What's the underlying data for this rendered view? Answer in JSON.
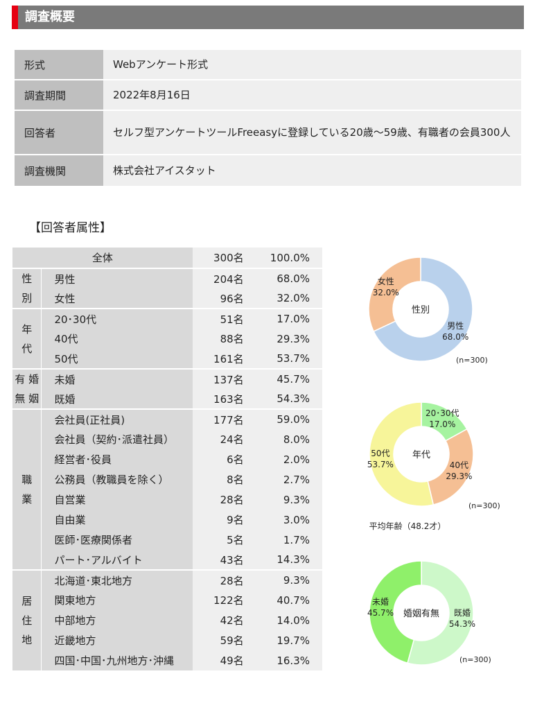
{
  "header": {
    "title": "調査概要"
  },
  "overview": [
    {
      "key": "形式",
      "value": "Webアンケート形式"
    },
    {
      "key": "調査期間",
      "value": "2022年8月16日"
    },
    {
      "key": "回答者",
      "value": "セルフ型アンケートツールFreeasyに登録している20歳～59歳、有職者の会員300人"
    },
    {
      "key": "調査機関",
      "value": "株式会社アイスタット"
    }
  ],
  "attributes": {
    "title": "【回答者属性】",
    "total": {
      "label": "全体",
      "count": "300名",
      "pct": "100.0%"
    },
    "groups": [
      {
        "name": "性\n別",
        "rows": [
          {
            "label": "男性",
            "count": "204名",
            "pct": "68.0%"
          },
          {
            "label": "女性",
            "count": "96名",
            "pct": "32.0%"
          }
        ]
      },
      {
        "name": "年\n代",
        "rows": [
          {
            "label": "20･30代",
            "count": "51名",
            "pct": "17.0%"
          },
          {
            "label": "40代",
            "count": "88名",
            "pct": "29.3%"
          },
          {
            "label": "50代",
            "count": "161名",
            "pct": "53.7%"
          }
        ]
      },
      {
        "name": "有 婚\n無 姻",
        "rows": [
          {
            "label": "未婚",
            "count": "137名",
            "pct": "45.7%"
          },
          {
            "label": "既婚",
            "count": "163名",
            "pct": "54.3%"
          }
        ]
      },
      {
        "name": "職\n業",
        "rows": [
          {
            "label": "会社員(正社員)",
            "count": "177名",
            "pct": "59.0%"
          },
          {
            "label": "会社員（契約･派遣社員）",
            "count": "24名",
            "pct": "8.0%"
          },
          {
            "label": "経営者･役員",
            "count": "6名",
            "pct": "2.0%"
          },
          {
            "label": "公務員（教職員を除く）",
            "count": "8名",
            "pct": "2.7%"
          },
          {
            "label": "自営業",
            "count": "28名",
            "pct": "9.3%"
          },
          {
            "label": "自由業",
            "count": "9名",
            "pct": "3.0%"
          },
          {
            "label": "医師･医療関係者",
            "count": "5名",
            "pct": "1.7%"
          },
          {
            "label": "パート･アルバイト",
            "count": "43名",
            "pct": "14.3%"
          }
        ]
      },
      {
        "name": "居\n住\n地",
        "rows": [
          {
            "label": "北海道･東北地方",
            "count": "28名",
            "pct": "9.3%"
          },
          {
            "label": "関東地方",
            "count": "122名",
            "pct": "40.7%"
          },
          {
            "label": "中部地方",
            "count": "42名",
            "pct": "14.0%"
          },
          {
            "label": "近畿地方",
            "count": "59名",
            "pct": "19.7%"
          },
          {
            "label": "四国･中国･九州地方･沖縄",
            "count": "49名",
            "pct": "16.3%"
          }
        ]
      }
    ]
  },
  "chart_data": [
    {
      "type": "pie",
      "title": "性別",
      "note": "(n=300)",
      "slices": [
        {
          "label": "男性",
          "value": 68.0,
          "display": "68.0%",
          "color": "#b9d1ec"
        },
        {
          "label": "女性",
          "value": 32.0,
          "display": "32.0%",
          "color": "#f5bf94"
        }
      ]
    },
    {
      "type": "pie",
      "title": "年代",
      "note": "(n=300)",
      "footnote": "平均年齢（48.2才）",
      "slices": [
        {
          "label": "20･30代",
          "value": 17.0,
          "display": "17.0%",
          "color": "#a6f3a0"
        },
        {
          "label": "40代",
          "value": 29.3,
          "display": "29.3%",
          "color": "#f5bf94"
        },
        {
          "label": "50代",
          "value": 53.7,
          "display": "53.7%",
          "color": "#f7f59a"
        }
      ]
    },
    {
      "type": "pie",
      "title": "婚姻有無",
      "note": "(n=300)",
      "slices": [
        {
          "label": "既婚",
          "value": 54.3,
          "display": "54.3%",
          "color": "#cdf8c9"
        },
        {
          "label": "未婚",
          "value": 45.7,
          "display": "45.7%",
          "color": "#8ff06a"
        }
      ]
    }
  ]
}
